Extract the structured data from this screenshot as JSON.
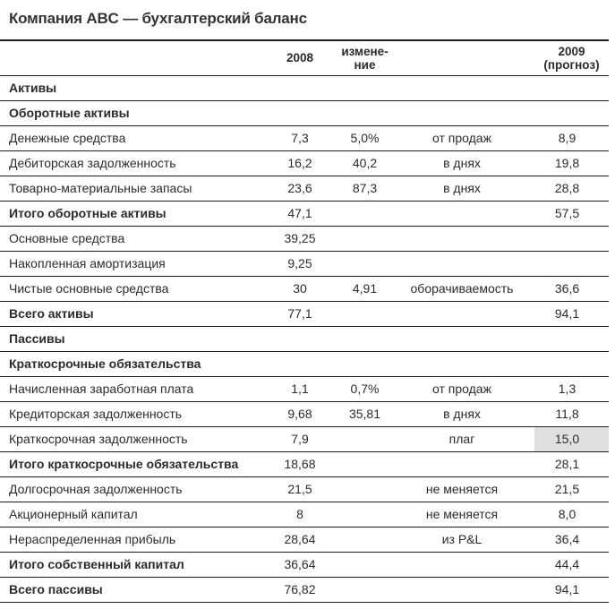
{
  "title": "Компания ABC — бухгалтерский баланс",
  "colors": {
    "text": "#2b2b2b",
    "rule": "#1f1f1f",
    "highlight_cell": "#e0e0e0"
  },
  "table": {
    "header": {
      "year_2008": "2008",
      "change_line1": "измене-",
      "change_line2": "ние",
      "year_2009_line1": "2009",
      "year_2009_line2": "(прогноз)"
    },
    "rows": [
      {
        "label": "Активы",
        "v2008": "",
        "change": "",
        "method": "",
        "v2009": "",
        "style": "section",
        "highlight": false
      },
      {
        "label": "Оборотные активы",
        "v2008": "",
        "change": "",
        "method": "",
        "v2009": "",
        "style": "section",
        "highlight": false
      },
      {
        "label": "Денежные средства",
        "v2008": "7,3",
        "change": "5,0%",
        "method": "от продаж",
        "v2009": "8,9",
        "style": "normal",
        "highlight": false
      },
      {
        "label": "Дебиторская задолженность",
        "v2008": "16,2",
        "change": "40,2",
        "method": "в днях",
        "v2009": "19,8",
        "style": "normal",
        "highlight": false
      },
      {
        "label": "Товарно-материальные запасы",
        "v2008": "23,6",
        "change": "87,3",
        "method": "в днях",
        "v2009": "28,8",
        "style": "normal",
        "highlight": false
      },
      {
        "label": "Итого оборотные активы",
        "v2008": "47,1",
        "change": "",
        "method": "",
        "v2009": "57,5",
        "style": "bold",
        "highlight": false
      },
      {
        "label": "Основные средства",
        "v2008": "39,25",
        "change": "",
        "method": "",
        "v2009": "",
        "style": "normal",
        "highlight": false
      },
      {
        "label": "Накопленная амортизация",
        "v2008": "9,25",
        "change": "",
        "method": "",
        "v2009": "",
        "style": "normal",
        "highlight": false
      },
      {
        "label": "Чистые основные средства",
        "v2008": "30",
        "change": "4,91",
        "method": "оборачиваемость",
        "v2009": "36,6",
        "style": "normal",
        "highlight": false
      },
      {
        "label": "Всего активы",
        "v2008": "77,1",
        "change": "",
        "method": "",
        "v2009": "94,1",
        "style": "bold",
        "highlight": false
      },
      {
        "label": "Пассивы",
        "v2008": "",
        "change": "",
        "method": "",
        "v2009": "",
        "style": "section",
        "highlight": false
      },
      {
        "label": "Краткосрочные обязательства",
        "v2008": "",
        "change": "",
        "method": "",
        "v2009": "",
        "style": "section",
        "highlight": false
      },
      {
        "label": "Начисленная заработная плата",
        "v2008": "1,1",
        "change": "0,7%",
        "method": "от продаж",
        "v2009": "1,3",
        "style": "normal",
        "highlight": false
      },
      {
        "label": "Кредиторская задолженность",
        "v2008": "9,68",
        "change": "35,81",
        "method": "в днях",
        "v2009": "11,8",
        "style": "normal",
        "highlight": false
      },
      {
        "label": "Краткосрочная задолженность",
        "v2008": "7,9",
        "change": "",
        "method": "плаг",
        "v2009": "15,0",
        "style": "normal",
        "highlight": true
      },
      {
        "label": "Итого краткосрочные обязательства",
        "v2008": "18,68",
        "change": "",
        "method": "",
        "v2009": "28,1",
        "style": "bold",
        "highlight": false
      },
      {
        "label": "Долгосрочная задолженность",
        "v2008": "21,5",
        "change": "",
        "method": "не меняется",
        "v2009": "21,5",
        "style": "normal",
        "highlight": false
      },
      {
        "label": "Акционерный капитал",
        "v2008": "8",
        "change": "",
        "method": "не меняется",
        "v2009": "8,0",
        "style": "normal",
        "highlight": false
      },
      {
        "label": "Нераспределенная прибыль",
        "v2008": "28,64",
        "change": "",
        "method": "из P&L",
        "v2009": "36,4",
        "style": "normal",
        "highlight": false
      },
      {
        "label": "Итого собственный капитал",
        "v2008": "36,64",
        "change": "",
        "method": "",
        "v2009": "44,4",
        "style": "bold",
        "highlight": false
      },
      {
        "label": "Всего пассивы",
        "v2008": "76,82",
        "change": "",
        "method": "",
        "v2009": "94,1",
        "style": "bold",
        "highlight": false
      }
    ]
  }
}
